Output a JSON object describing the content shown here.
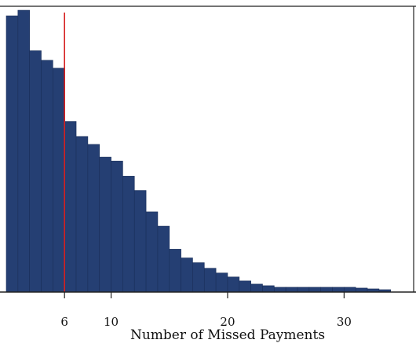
{
  "chart_data": {
    "type": "bar",
    "title": "",
    "xlabel": "Number of Missed Payments",
    "ylabel": "",
    "bin_width": 1,
    "bin_starts": [
      1,
      2,
      3,
      4,
      5,
      6,
      7,
      8,
      9,
      10,
      11,
      12,
      13,
      14,
      15,
      16,
      17,
      18,
      19,
      20,
      21,
      22,
      23,
      24,
      25,
      26,
      27,
      28,
      29,
      30,
      31,
      32,
      33,
      34
    ],
    "values": [
      348,
      355,
      304,
      292,
      282,
      215,
      196,
      186,
      170,
      165,
      146,
      128,
      101,
      83,
      54,
      43,
      37,
      30,
      24,
      19,
      14,
      10,
      8,
      6,
      6,
      6,
      6,
      6,
      6,
      6,
      5,
      4,
      3,
      0
    ],
    "x_ticks": [
      6,
      10,
      20,
      30
    ],
    "xlim": [
      1,
      35.5
    ],
    "ylim": [
      0,
      360
    ],
    "grid": false,
    "reference_line": {
      "x": 6,
      "color": "#d62020"
    },
    "bar_color": "#253f73",
    "bar_edge_color": "#1a2f5a"
  }
}
